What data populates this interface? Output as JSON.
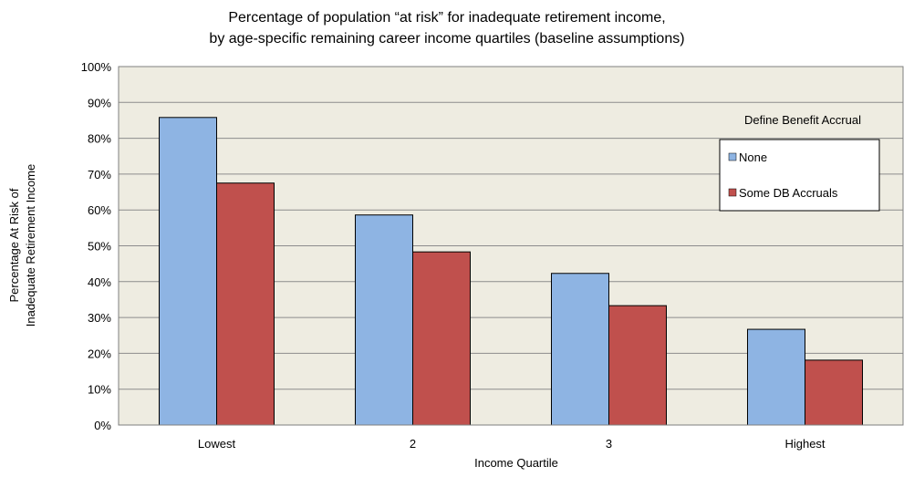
{
  "chart_data": {
    "type": "bar",
    "title": "",
    "subtitle_lines": [
      "Percentage of population “at risk” for inadequate retirement income,",
      "by age-specific remaining career income quartiles (baseline assumptions)"
    ],
    "xlabel": "Income Quartile",
    "ylabel_lines": [
      "Percentage At Risk of",
      "Inadequate Retirement Income"
    ],
    "categories": [
      "Lowest",
      "2",
      "3",
      "Highest"
    ],
    "series": [
      {
        "name": "None",
        "color": "#8eb4e3",
        "values": [
          85.8,
          58.6,
          42.3,
          26.7
        ]
      },
      {
        "name": "Some DB Accruals",
        "color": "#c0504d",
        "values": [
          67.5,
          48.3,
          33.3,
          18.1
        ]
      }
    ],
    "ylim": [
      0,
      100
    ],
    "y_ticks": [
      "0%",
      "10%",
      "20%",
      "30%",
      "40%",
      "50%",
      "60%",
      "70%",
      "80%",
      "90%",
      "100%"
    ],
    "grid": true,
    "plot_background": "#eeece1",
    "legend": {
      "title": "Define Benefit Accrual",
      "placement": "top-right"
    }
  }
}
